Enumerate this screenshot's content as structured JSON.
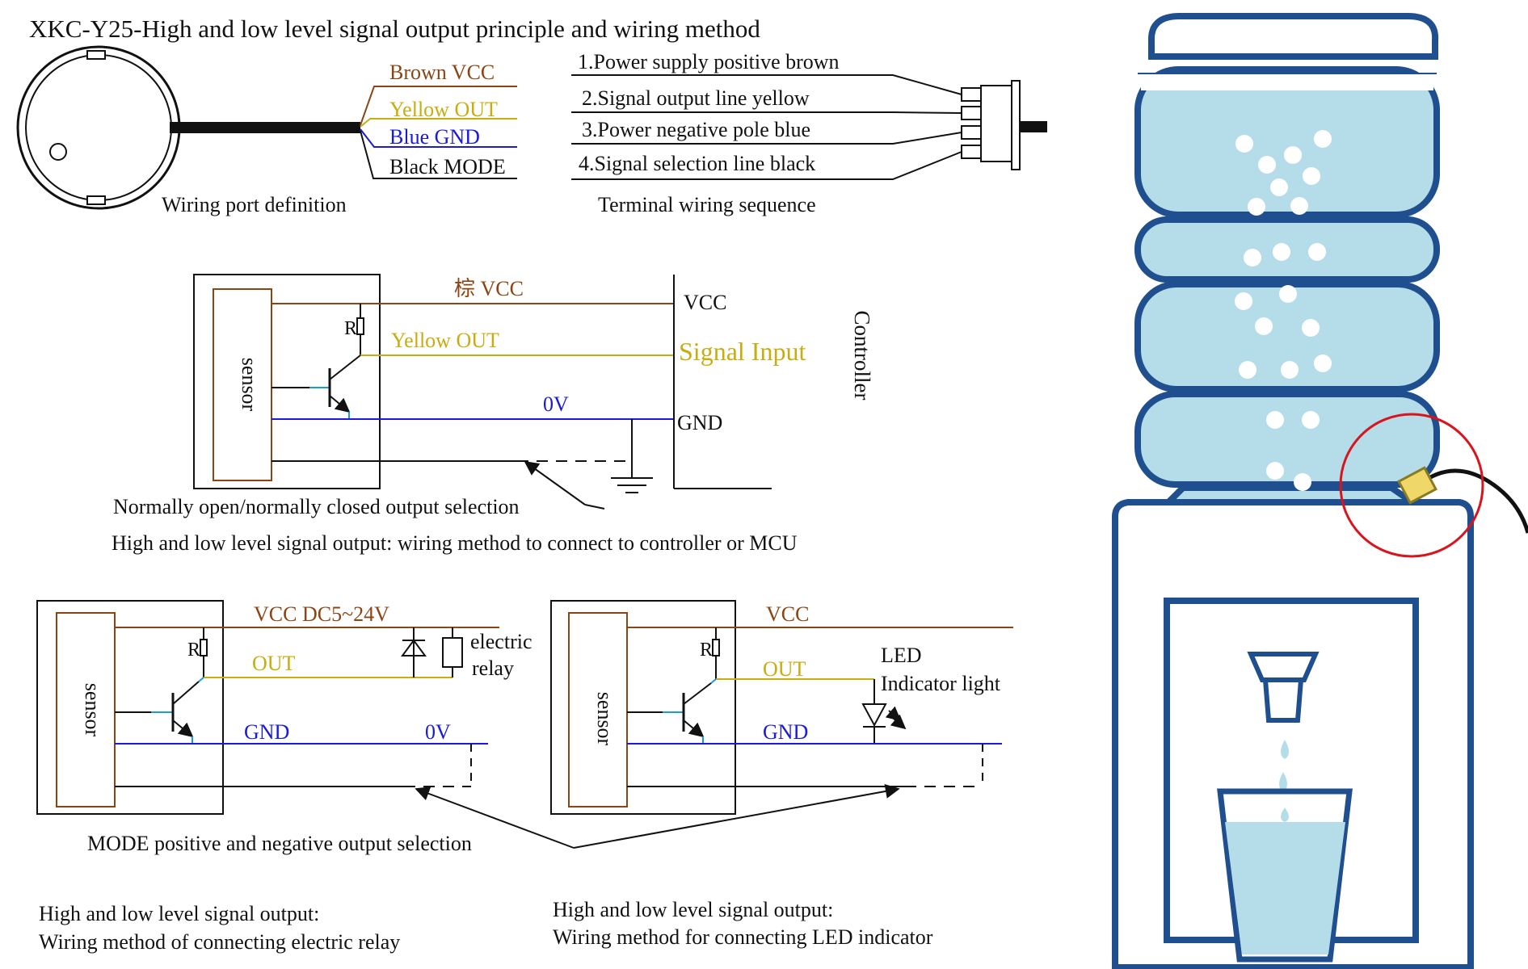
{
  "title": "XKC-Y25-High and low level  signal output principle and wiring method",
  "port": {
    "caption": "Wiring port definition",
    "wires": {
      "brown": "Brown VCC",
      "yellow": "Yellow OUT",
      "blue": "Blue GND",
      "black": "Black MODE"
    }
  },
  "terminal": {
    "caption": "Terminal wiring sequence",
    "lines": [
      "1.Power supply positive brown",
      "2.Signal output line yellow",
      "3.Power negative pole blue",
      "4.Signal selection line black"
    ]
  },
  "controller": {
    "sensor": "sensor",
    "r": "R",
    "vcc_wire": "棕 VCC",
    "out_wire": "Yellow OUT",
    "zero_v": "0V",
    "vcc": "VCC",
    "signal_input": "Signal Input",
    "gnd": "GND",
    "side": "Controller",
    "selection_note": "Normally open/normally closed output selection",
    "caption": "High and low level signal output: wiring method to connect to controller or MCU"
  },
  "relay": {
    "sensor": "sensor",
    "r": "R",
    "vcc": "VCC DC5~24V",
    "out": "OUT",
    "gnd": "GND",
    "zero_v": "0V",
    "device_line1": "electric",
    "device_line2": "relay",
    "caption_line1": "High and low level signal output:",
    "caption_line2": "Wiring method of connecting electric relay"
  },
  "led": {
    "sensor": "sensor",
    "r": "R",
    "vcc": "VCC",
    "out": "OUT",
    "gnd": "GND",
    "device_line1": "LED",
    "device_line2": "Indicator  light",
    "caption_line1": "High and low level signal output:",
    "caption_line2": "Wiring method for connecting LED indicator"
  },
  "mode_note": "MODE positive and negative output selection",
  "colors": {
    "brown": "#8b4513",
    "yellow": "#c9ac10",
    "blue": "#1a1adc",
    "black": "#111111",
    "water": "#b5dce9",
    "outline": "#1f4f8e",
    "highlight": "#d9141c",
    "sensor_fill": "#f0d76a"
  },
  "icons": [
    "sensor-disc-icon",
    "connector-icon",
    "ground-icon",
    "diode-icon",
    "relay-coil-icon",
    "led-icon",
    "water-dispenser-icon",
    "level-sensor-icon"
  ]
}
